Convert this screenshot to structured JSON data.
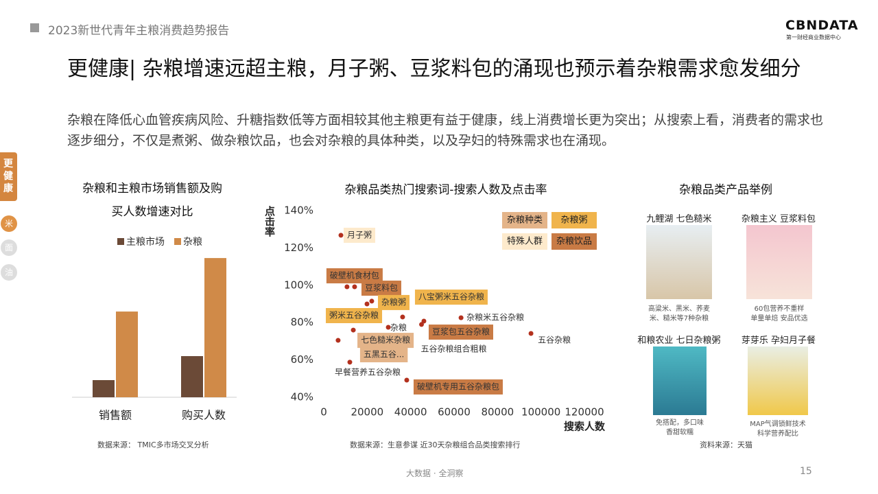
{
  "header": {
    "report": "2023新世代青年主粮消费趋势报告",
    "logo": "CBNDATA",
    "logo_sub": "第一财经商业数据中心"
  },
  "title": "更健康| 杂粮增速远超主粮，月子粥、豆浆料包的涌现也预示着杂粮需求愈发细分",
  "subtitle": "杂粮在降低心血管疾病风险、升糖指数低等方面相较其他主粮更有益于健康，线上消费增长更为突出；从搜索上看，消费者的需求也逐步细分，不仅是煮粥、做杂粮饮品，也会对杂粮的具体种类，以及孕妇的特殊需求也在涌现。",
  "sidebar": [
    "更健康",
    "米",
    "面",
    "油"
  ],
  "chart_data": [
    {
      "type": "bar",
      "title": "杂粮和主粮市场销售额及购买人数增速对比",
      "categories": [
        "销售额",
        "购买人数"
      ],
      "series": [
        {
          "name": "主粮市场",
          "color": "#6b4a37",
          "values": [
            25,
            60
          ]
        },
        {
          "name": "杂粮",
          "color": "#d08a48",
          "values": [
            125,
            203
          ]
        }
      ],
      "source": "数据来源： TMIC多市场交叉分析"
    },
    {
      "type": "scatter",
      "title": "杂粮品类热门搜索词-搜索人数及点击率",
      "x_label": "搜索人数",
      "y_label": "点击率",
      "xlim": [
        0,
        120000
      ],
      "xticks": [
        0,
        20000,
        40000,
        60000,
        80000,
        100000,
        120000
      ],
      "ylim": [
        40,
        140
      ],
      "yticks": [
        {
          "value": 40,
          "label": "40%"
        },
        {
          "value": 60,
          "label": "60%"
        },
        {
          "value": 80,
          "label": "80%"
        },
        {
          "value": 100,
          "label": "100%"
        },
        {
          "value": 120,
          "label": "120%"
        },
        {
          "value": 140,
          "label": "140%"
        }
      ],
      "point_color": "#b3311e",
      "legend": [
        {
          "name": "杂粮种类",
          "color": "#e4b489"
        },
        {
          "name": "杂粮粥",
          "color": "#f0b44c"
        },
        {
          "name": "特殊人群",
          "color": "#fdeacc"
        },
        {
          "name": "杂粮饮品",
          "color": "#c97b45"
        }
      ],
      "points": [
        {
          "name": "月子粥",
          "x": 7900,
          "y": 126.8,
          "group": 2
        },
        {
          "name": "破壁机食材包",
          "x": 10700,
          "y": 99.2,
          "group": 3
        },
        {
          "name": "豆浆料包",
          "x": 14200,
          "y": 99.2,
          "group": 3
        },
        {
          "name": "杂粮粥",
          "x": 22100,
          "y": 91.5,
          "group": 1
        },
        {
          "name": "八宝粥米五谷杂粮",
          "x": 36300,
          "y": 83,
          "group": 1
        },
        {
          "name": "粥米五谷杂粮",
          "x": 19900,
          "y": 90,
          "group": 1
        },
        {
          "name": "杂粮",
          "x": 29700,
          "y": 77.5
        },
        {
          "name": "杂粮米五谷杂粮",
          "x": 63200,
          "y": 82.6
        },
        {
          "name": "豆浆包五谷杂粮",
          "x": 46100,
          "y": 80.8,
          "group": 3
        },
        {
          "name": "五谷杂粮组合粗粮",
          "x": 45000,
          "y": 79
        },
        {
          "name": "五谷杂粮",
          "x": 95400,
          "y": 74.2
        },
        {
          "name": "七色糙米杂粮",
          "x": 13600,
          "y": 76,
          "group": 0
        },
        {
          "name": "五黑五谷...",
          "x": 6600,
          "y": 70.5,
          "group": 0
        },
        {
          "name": "早餐营养五谷杂粮",
          "x": 12000,
          "y": 58.8
        },
        {
          "name": "破壁机专用五谷杂粮包",
          "x": 38200,
          "y": 49.2,
          "group": 3
        }
      ],
      "source": "数据来源：生意参谋 近30天杂粮组合品类搜索排行"
    }
  ],
  "products": {
    "title": "杂粮品类产品举例",
    "items": [
      {
        "name": "九鲤湖 七色糙米",
        "caption": [
          "高粱米、黑米、荞麦",
          "米、糙米等7种杂粮"
        ]
      },
      {
        "name": "杂粮主义 豆浆料包",
        "caption": [
          "60包营养不重样",
          "单量单焙 安品优选"
        ]
      },
      {
        "name": "和粮农业 七日杂粮粥",
        "caption": [
          "免搭配，多口味",
          "香甜软糯"
        ]
      },
      {
        "name": "芽芽乐 孕妇月子餐",
        "caption": [
          "MAP气调锁鲜技术",
          "科学营养配比"
        ]
      }
    ],
    "source": "资料来源：天猫"
  },
  "footer": {
    "tagline": "大数据 · 全洞察",
    "page": "15"
  }
}
